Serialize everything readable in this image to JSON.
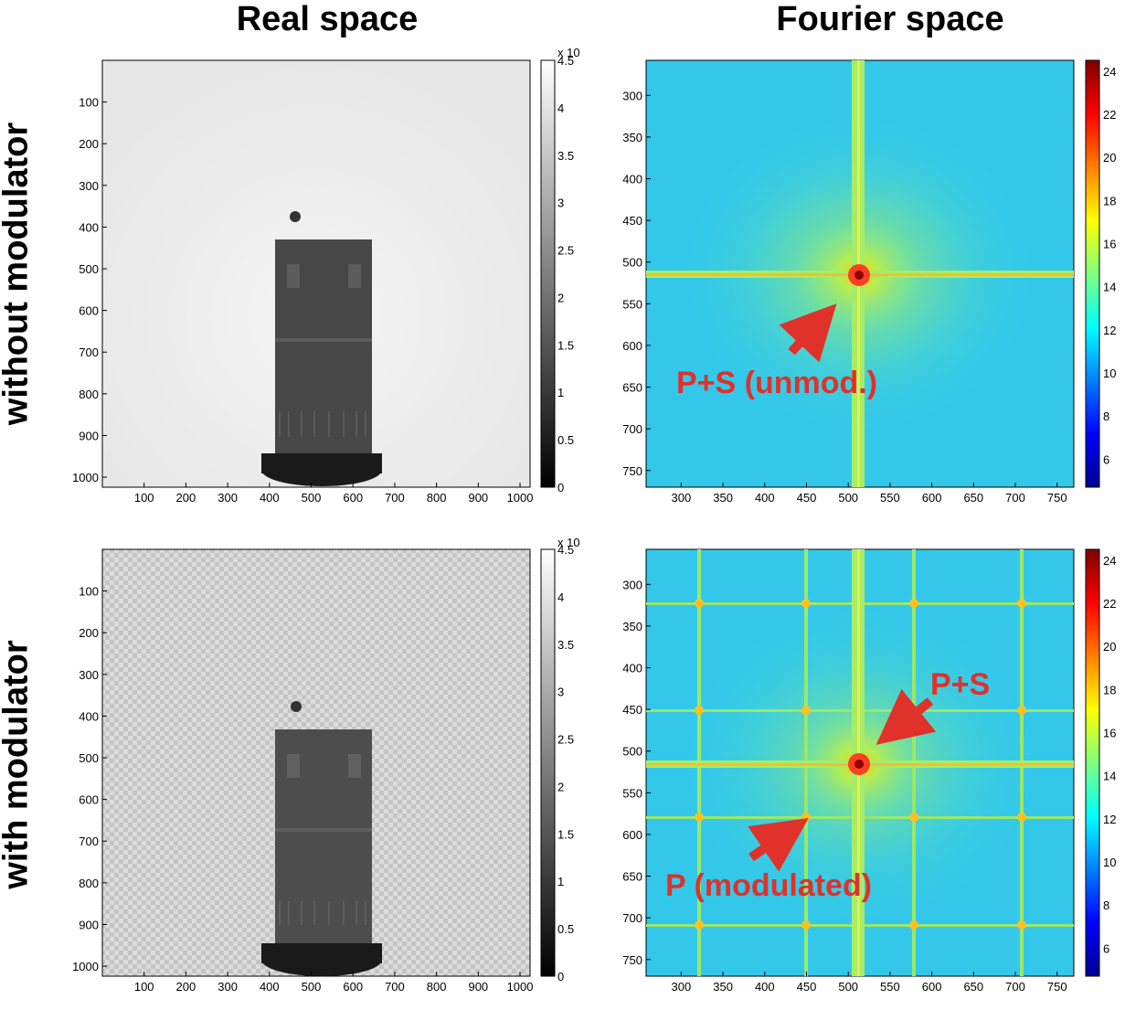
{
  "column_titles": {
    "real": "Real space",
    "fourier": "Fourier space"
  },
  "row_titles": {
    "top": "without modulator",
    "bottom": "with modulator"
  },
  "real_panels": {
    "x_ticks": [
      "100",
      "200",
      "300",
      "400",
      "500",
      "600",
      "700",
      "800",
      "900",
      "1000"
    ],
    "y_ticks": [
      "100",
      "200",
      "300",
      "400",
      "500",
      "600",
      "700",
      "800",
      "900",
      "1000"
    ],
    "colorbar_multiplier": "x 10",
    "colorbar_ticks": [
      "0",
      "0.5",
      "1",
      "1.5",
      "2",
      "2.5",
      "3",
      "3.5",
      "4",
      "4.5"
    ]
  },
  "fourier_panels": {
    "x_ticks": [
      "300",
      "350",
      "400",
      "450",
      "500",
      "550",
      "600",
      "650",
      "700",
      "750"
    ],
    "y_ticks": [
      "300",
      "350",
      "400",
      "450",
      "500",
      "550",
      "600",
      "650",
      "700",
      "750"
    ],
    "colorbar_ticks": [
      "6",
      "8",
      "10",
      "12",
      "14",
      "16",
      "18",
      "20",
      "22",
      "24"
    ]
  },
  "annotations": {
    "top": "P+S (unmod.)",
    "bottom_ps": "P+S",
    "bottom_p": "P (modulated)"
  },
  "colors": {
    "annotation": "#e0312a",
    "fourier_bg": "#33c8ea"
  }
}
